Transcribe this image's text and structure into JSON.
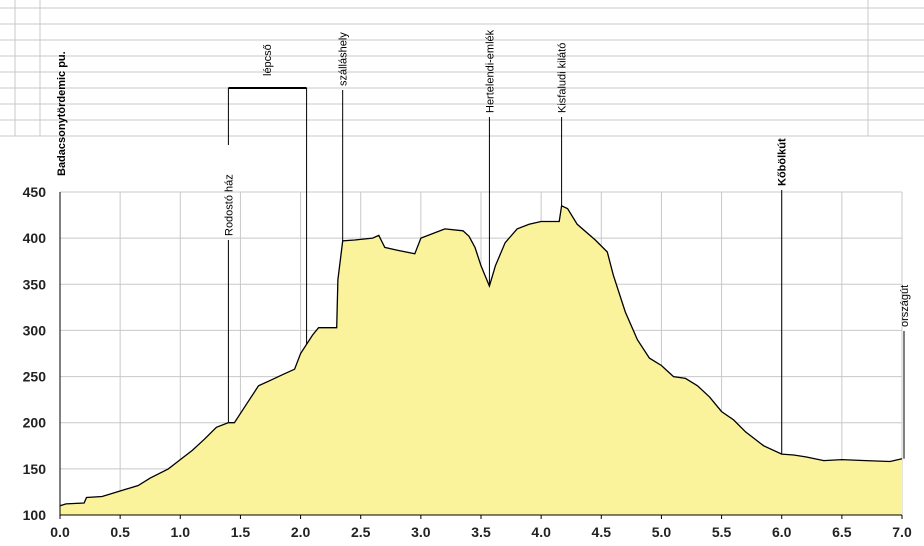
{
  "chart_data": {
    "type": "area",
    "color": "#fbf29c",
    "line_color": "#000000",
    "grid": true,
    "x": [
      0,
      0.05,
      0.2,
      0.22,
      0.35,
      0.5,
      0.65,
      0.75,
      0.9,
      1.0,
      1.1,
      1.2,
      1.3,
      1.4,
      1.45,
      1.55,
      1.65,
      1.75,
      1.85,
      1.95,
      2.0,
      2.1,
      2.15,
      2.3,
      2.31,
      2.35,
      2.45,
      2.6,
      2.65,
      2.7,
      2.8,
      2.95,
      3.0,
      3.1,
      3.2,
      3.35,
      3.4,
      3.45,
      3.5,
      3.57,
      3.62,
      3.7,
      3.8,
      3.9,
      4.0,
      4.15,
      4.17,
      4.22,
      4.3,
      4.45,
      4.55,
      4.6,
      4.7,
      4.8,
      4.9,
      5.0,
      5.1,
      5.2,
      5.3,
      5.4,
      5.5,
      5.6,
      5.7,
      5.85,
      6.0,
      6.1,
      6.2,
      6.35,
      6.5,
      6.7,
      6.9,
      7.0
    ],
    "values": [
      110,
      112,
      113,
      119,
      120,
      126,
      132,
      140,
      150,
      160,
      170,
      182,
      195,
      200,
      200,
      220,
      240,
      246,
      252,
      258,
      275,
      295,
      303,
      303,
      355,
      397,
      398,
      400,
      403,
      390,
      387,
      383,
      400,
      405,
      410,
      408,
      402,
      390,
      370,
      348,
      370,
      395,
      410,
      415,
      418,
      418,
      435,
      432,
      415,
      398,
      385,
      360,
      320,
      290,
      270,
      262,
      250,
      248,
      240,
      228,
      212,
      203,
      190,
      175,
      166,
      165,
      163,
      159,
      160,
      159,
      158,
      161
    ],
    "xlim": [
      0,
      7
    ],
    "ylim": [
      100,
      450
    ],
    "xticks": [
      {
        "value": 0,
        "label": "0.0"
      },
      0.5,
      {
        "value": 1,
        "label": "1.0"
      },
      1.5,
      {
        "value": 2,
        "label": "2.0"
      },
      2.5,
      {
        "value": 3,
        "label": "3.0"
      },
      3.5,
      {
        "value": 4,
        "label": "4.0"
      },
      4.5,
      {
        "value": 5,
        "label": "5.0"
      },
      5.5,
      {
        "value": 6,
        "label": "6.0"
      },
      6.5,
      {
        "value": 7,
        "label": "7.0"
      }
    ],
    "yticks": [
      100,
      150,
      200,
      250,
      300,
      350,
      400,
      450
    ],
    "annotations": [
      {
        "text": "Badacsonytördemic pu.",
        "x": 0,
        "bold": true
      },
      {
        "text": "Rodostó ház",
        "x": 1.4,
        "bold": false
      },
      {
        "text": "lépcső",
        "x": 1.72,
        "bold": false
      },
      {
        "text": "szálláshely",
        "x": 2.35,
        "bold": false
      },
      {
        "text": "Hertelendi-emlék",
        "x": 3.57,
        "bold": false
      },
      {
        "text": "Kisfaludi kilátó",
        "x": 4.17,
        "bold": false
      },
      {
        "text": "Kőbölkút",
        "x": 6.0,
        "bold": true
      },
      {
        "text": "országút",
        "x": 7.0,
        "bold": false
      }
    ]
  }
}
